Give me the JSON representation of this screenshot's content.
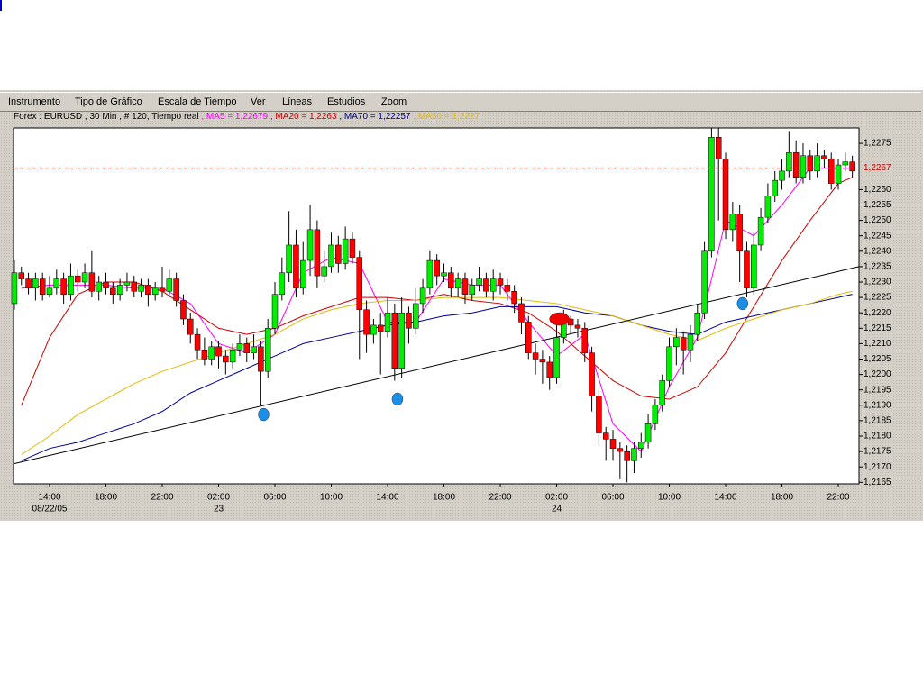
{
  "menu": [
    "Instrumento",
    "Tipo de Gráfico",
    "Escala de Tiempo",
    "Ver",
    "Líneas",
    "Estudios",
    "Zoom"
  ],
  "info": {
    "instrument": "Forex : EURUSD , 30 Min , # 120, Tiempo real",
    "indicators": [
      {
        "label": " , MA5 = 1,22679",
        "color": "#ff00ff"
      },
      {
        "label": " , MA20 = 1,2263",
        "color": "#cc0000"
      },
      {
        "label": " , MA70 = 1,22257",
        "color": "#000099"
      },
      {
        "label": " , MA50 = 1,2227",
        "color": "#e6b800"
      }
    ]
  },
  "chart_data": {
    "type": "candlestick",
    "up_color": "#00ee00",
    "down_color": "#ff0000",
    "xlim": [
      11.44,
      71.47
    ],
    "ylim": [
      1.21645,
      1.228
    ],
    "xticks": [
      {
        "value": 14,
        "label": "14:00"
      },
      {
        "value": 18,
        "label": "18:00"
      },
      {
        "value": 22,
        "label": "22:00"
      },
      {
        "value": 26,
        "label": "02:00"
      },
      {
        "value": 30,
        "label": "06:00"
      },
      {
        "value": 34,
        "label": "10:00"
      },
      {
        "value": 38,
        "label": "14:00"
      },
      {
        "value": 42,
        "label": "18:00"
      },
      {
        "value": 46,
        "label": "22:00"
      },
      {
        "value": 50,
        "label": "02:00"
      },
      {
        "value": 54,
        "label": "06:00"
      },
      {
        "value": 58,
        "label": "10:00"
      },
      {
        "value": 62,
        "label": "14:00"
      },
      {
        "value": 66,
        "label": "18:00"
      },
      {
        "value": 70,
        "label": "22:00"
      }
    ],
    "date_labels": [
      {
        "value": 14,
        "label": "08/22/05"
      },
      {
        "value": 26,
        "label": "23"
      },
      {
        "value": 50,
        "label": "24"
      }
    ],
    "yticks": [
      {
        "value": 1.2165,
        "label": "1,2165"
      },
      {
        "value": 1.217,
        "label": "1,2170"
      },
      {
        "value": 1.2175,
        "label": "1,2175"
      },
      {
        "value": 1.218,
        "label": "1,2180"
      },
      {
        "value": 1.2185,
        "label": "1,2185"
      },
      {
        "value": 1.219,
        "label": "1,2190"
      },
      {
        "value": 1.2195,
        "label": "1,2195"
      },
      {
        "value": 1.22,
        "label": "1,2200"
      },
      {
        "value": 1.2205,
        "label": "1,2205"
      },
      {
        "value": 1.221,
        "label": "1,2210"
      },
      {
        "value": 1.2215,
        "label": "1,2215"
      },
      {
        "value": 1.222,
        "label": "1,2220"
      },
      {
        "value": 1.2225,
        "label": "1,2225"
      },
      {
        "value": 1.223,
        "label": "1,2230"
      },
      {
        "value": 1.2235,
        "label": "1,2235"
      },
      {
        "value": 1.224,
        "label": "1,2240"
      },
      {
        "value": 1.2245,
        "label": "1,2245"
      },
      {
        "value": 1.225,
        "label": "1,2250"
      },
      {
        "value": 1.2255,
        "label": "1,2255"
      },
      {
        "value": 1.226,
        "label": "1,2260"
      },
      {
        "value": 1.2275,
        "label": "1,2275"
      }
    ],
    "last_price": {
      "value": 1.2267,
      "label": "1,2267",
      "color": "#cc0000"
    },
    "x": [
      11.5,
      12,
      12.5,
      13,
      13.5,
      14,
      14.5,
      15,
      15.5,
      16,
      16.5,
      17,
      17.5,
      18,
      18.5,
      19,
      19.5,
      20,
      20.5,
      21,
      21.5,
      22,
      22.5,
      23,
      23.5,
      24,
      24.5,
      25,
      25.5,
      26,
      26.5,
      27,
      27.5,
      28,
      28.5,
      29,
      29.5,
      30,
      30.5,
      31,
      31.5,
      32,
      32.5,
      33,
      33.5,
      34,
      34.5,
      35,
      35.5,
      36,
      36.5,
      37,
      37.5,
      38,
      38.5,
      39,
      39.5,
      40,
      40.5,
      41,
      41.5,
      42,
      42.5,
      43,
      43.5,
      44,
      44.5,
      45,
      45.5,
      46,
      46.5,
      47,
      47.5,
      48,
      48.5,
      49,
      49.5,
      50,
      50.5,
      51,
      51.5,
      52,
      52.5,
      53,
      53.5,
      54,
      54.5,
      55,
      55.5,
      56,
      56.5,
      57,
      57.5,
      58,
      58.5,
      59,
      59.5,
      60,
      60.5,
      61,
      61.5,
      62,
      62.5,
      63,
      63.5,
      64,
      64.5,
      65,
      65.5,
      66,
      66.5,
      67,
      67.5,
      68,
      68.5,
      69,
      69.5,
      70,
      70.5,
      71
    ],
    "ohlc": [
      [
        1.2223,
        1.2237,
        1.2221,
        1.2233
      ],
      [
        1.2233,
        1.2235,
        1.2229,
        1.2231
      ],
      [
        1.2231,
        1.2233,
        1.2226,
        1.2228
      ],
      [
        1.2228,
        1.2233,
        1.2224,
        1.2231
      ],
      [
        1.2231,
        1.2233,
        1.2224,
        1.2226
      ],
      [
        1.2226,
        1.2232,
        1.2225,
        1.2228
      ],
      [
        1.2228,
        1.2234,
        1.2226,
        1.2231
      ],
      [
        1.2231,
        1.2233,
        1.2223,
        1.2226
      ],
      [
        1.2226,
        1.2236,
        1.2224,
        1.2232
      ],
      [
        1.2232,
        1.2234,
        1.2227,
        1.223
      ],
      [
        1.223,
        1.2236,
        1.2228,
        1.2233
      ],
      [
        1.2233,
        1.224,
        1.2225,
        1.2227
      ],
      [
        1.2227,
        1.2232,
        1.2224,
        1.223
      ],
      [
        1.223,
        1.2233,
        1.2226,
        1.2228
      ],
      [
        1.2228,
        1.223,
        1.2223,
        1.2226
      ],
      [
        1.2226,
        1.2231,
        1.2224,
        1.2229
      ],
      [
        1.2229,
        1.2233,
        1.2227,
        1.223
      ],
      [
        1.223,
        1.2232,
        1.2225,
        1.2227
      ],
      [
        1.2227,
        1.2231,
        1.2225,
        1.2229
      ],
      [
        1.2229,
        1.2231,
        1.2222,
        1.2226
      ],
      [
        1.2226,
        1.223,
        1.2224,
        1.2228
      ],
      [
        1.2228,
        1.2235,
        1.2225,
        1.2227
      ],
      [
        1.2227,
        1.2234,
        1.2225,
        1.2231
      ],
      [
        1.2231,
        1.2233,
        1.2222,
        1.2224
      ],
      [
        1.2224,
        1.2226,
        1.2216,
        1.2218
      ],
      [
        1.2218,
        1.222,
        1.221,
        1.2213
      ],
      [
        1.2213,
        1.2215,
        1.2205,
        1.2208
      ],
      [
        1.2208,
        1.2212,
        1.2203,
        1.2205
      ],
      [
        1.2205,
        1.2211,
        1.2203,
        1.2209
      ],
      [
        1.2209,
        1.2211,
        1.2202,
        1.2206
      ],
      [
        1.2206,
        1.2208,
        1.22,
        1.2204
      ],
      [
        1.2204,
        1.221,
        1.2202,
        1.2208
      ],
      [
        1.2208,
        1.2213,
        1.2206,
        1.221
      ],
      [
        1.221,
        1.2212,
        1.2204,
        1.2207
      ],
      [
        1.2207,
        1.2213,
        1.2205,
        1.2209
      ],
      [
        1.2209,
        1.2211,
        1.219,
        1.2201
      ],
      [
        1.2201,
        1.2218,
        1.2199,
        1.2215
      ],
      [
        1.2215,
        1.223,
        1.2213,
        1.2226
      ],
      [
        1.2226,
        1.2238,
        1.2224,
        1.2233
      ],
      [
        1.2233,
        1.2253,
        1.223,
        1.2242
      ],
      [
        1.2242,
        1.2247,
        1.2225,
        1.2228
      ],
      [
        1.2228,
        1.2243,
        1.2226,
        1.2237
      ],
      [
        1.2237,
        1.2255,
        1.2232,
        1.2247
      ],
      [
        1.2247,
        1.225,
        1.2228,
        1.2232
      ],
      [
        1.2232,
        1.224,
        1.223,
        1.2235
      ],
      [
        1.2235,
        1.2246,
        1.2233,
        1.2242
      ],
      [
        1.2242,
        1.2245,
        1.2233,
        1.2236
      ],
      [
        1.2236,
        1.2248,
        1.2234,
        1.2244
      ],
      [
        1.2244,
        1.2246,
        1.2236,
        1.2238
      ],
      [
        1.2238,
        1.224,
        1.2205,
        1.2221
      ],
      [
        1.2221,
        1.2224,
        1.2207,
        1.2213
      ],
      [
        1.2213,
        1.2218,
        1.221,
        1.2216
      ],
      [
        1.2216,
        1.222,
        1.22,
        1.2214
      ],
      [
        1.2214,
        1.2225,
        1.2212,
        1.222
      ],
      [
        1.222,
        1.2223,
        1.2198,
        1.2202
      ],
      [
        1.2202,
        1.2225,
        1.2199,
        1.222
      ],
      [
        1.222,
        1.2222,
        1.221,
        1.2215
      ],
      [
        1.2215,
        1.2228,
        1.2213,
        1.2223
      ],
      [
        1.2223,
        1.2231,
        1.222,
        1.2228
      ],
      [
        1.2228,
        1.224,
        1.2226,
        1.2237
      ],
      [
        1.2237,
        1.2239,
        1.2229,
        1.2232
      ],
      [
        1.2232,
        1.2236,
        1.223,
        1.2233
      ],
      [
        1.2233,
        1.2235,
        1.2225,
        1.2228
      ],
      [
        1.2228,
        1.2233,
        1.2225,
        1.2231
      ],
      [
        1.2231,
        1.2233,
        1.2223,
        1.2226
      ],
      [
        1.2226,
        1.2231,
        1.2224,
        1.2229
      ],
      [
        1.2229,
        1.2235,
        1.2227,
        1.2231
      ],
      [
        1.2231,
        1.2233,
        1.2225,
        1.2227
      ],
      [
        1.2227,
        1.2234,
        1.2224,
        1.2231
      ],
      [
        1.2231,
        1.2233,
        1.2226,
        1.2229
      ],
      [
        1.2229,
        1.2231,
        1.2224,
        1.2227
      ],
      [
        1.2227,
        1.2229,
        1.222,
        1.2223
      ],
      [
        1.2223,
        1.2225,
        1.2213,
        1.2217
      ],
      [
        1.2217,
        1.2219,
        1.2205,
        1.2207
      ],
      [
        1.2207,
        1.221,
        1.22,
        1.2205
      ],
      [
        1.2205,
        1.2208,
        1.2197,
        1.2204
      ],
      [
        1.2204,
        1.2206,
        1.2195,
        1.2199
      ],
      [
        1.2199,
        1.2216,
        1.2197,
        1.2212
      ],
      [
        1.2212,
        1.2221,
        1.221,
        1.2218
      ],
      [
        1.2218,
        1.2219,
        1.2213,
        1.2216
      ],
      [
        1.2216,
        1.2218,
        1.2212,
        1.2215
      ],
      [
        1.2215,
        1.2217,
        1.2204,
        1.2207
      ],
      [
        1.2207,
        1.2209,
        1.2188,
        1.2193
      ],
      [
        1.2193,
        1.2195,
        1.2177,
        1.2181
      ],
      [
        1.2181,
        1.2183,
        1.2172,
        1.2179
      ],
      [
        1.2179,
        1.2182,
        1.2172,
        1.2176
      ],
      [
        1.2176,
        1.2178,
        1.2166,
        1.2175
      ],
      [
        1.2175,
        1.2177,
        1.2165,
        1.2172
      ],
      [
        1.2172,
        1.2178,
        1.2168,
        1.2176
      ],
      [
        1.2176,
        1.2181,
        1.2173,
        1.2178
      ],
      [
        1.2178,
        1.2187,
        1.2176,
        1.2184
      ],
      [
        1.2184,
        1.2192,
        1.2182,
        1.219
      ],
      [
        1.219,
        1.22,
        1.2188,
        1.2198
      ],
      [
        1.2198,
        1.2212,
        1.2196,
        1.2209
      ],
      [
        1.2209,
        1.2215,
        1.2203,
        1.2212
      ],
      [
        1.2212,
        1.2214,
        1.22,
        1.2208
      ],
      [
        1.2208,
        1.2216,
        1.2204,
        1.2213
      ],
      [
        1.2213,
        1.2223,
        1.2211,
        1.222
      ],
      [
        1.222,
        1.2243,
        1.2218,
        1.224
      ],
      [
        1.224,
        1.228,
        1.2238,
        1.2277
      ],
      [
        1.2277,
        1.228,
        1.225,
        1.227
      ],
      [
        1.227,
        1.2272,
        1.2244,
        1.2247
      ],
      [
        1.2247,
        1.2256,
        1.2243,
        1.2252
      ],
      [
        1.2252,
        1.2255,
        1.223,
        1.224
      ],
      [
        1.224,
        1.2243,
        1.2225,
        1.2228
      ],
      [
        1.2228,
        1.2246,
        1.2226,
        1.2242
      ],
      [
        1.2242,
        1.2254,
        1.224,
        1.2251
      ],
      [
        1.2251,
        1.2262,
        1.2249,
        1.2258
      ],
      [
        1.2258,
        1.2266,
        1.2256,
        1.2263
      ],
      [
        1.2263,
        1.227,
        1.226,
        1.2266
      ],
      [
        1.2266,
        1.2279,
        1.2264,
        1.2272
      ],
      [
        1.2272,
        1.2276,
        1.2262,
        1.2264
      ],
      [
        1.2264,
        1.2275,
        1.2262,
        1.2271
      ],
      [
        1.2271,
        1.2273,
        1.2263,
        1.2266
      ],
      [
        1.2266,
        1.2275,
        1.2264,
        1.2271
      ],
      [
        1.2271,
        1.2273,
        1.2267,
        1.227
      ],
      [
        1.227,
        1.2272,
        1.226,
        1.2262
      ],
      [
        1.2262,
        1.227,
        1.226,
        1.2268
      ],
      [
        1.2268,
        1.2272,
        1.2266,
        1.2269
      ],
      [
        1.2269,
        1.2271,
        1.2264,
        1.2266
      ]
    ],
    "line_x": [
      12,
      14,
      16,
      18,
      20,
      22,
      24,
      26,
      28,
      30,
      32,
      34,
      36,
      38,
      40,
      42,
      44,
      46,
      48,
      50,
      52,
      54,
      56,
      58,
      60,
      62,
      64,
      66,
      68,
      70,
      71
    ],
    "lines": [
      {
        "color": "#ff00ff",
        "values": [
          1.2228,
          1.2229,
          1.2229,
          1.2229,
          1.2228,
          1.2228,
          1.2223,
          1.221,
          1.2207,
          1.2213,
          1.2233,
          1.2238,
          1.2236,
          1.2217,
          1.2217,
          1.2231,
          1.2229,
          1.2229,
          1.2217,
          1.2206,
          1.2213,
          1.2184,
          1.2175,
          1.2196,
          1.2212,
          1.225,
          1.2245,
          1.2255,
          1.2267,
          1.2267,
          1.2267
        ]
      },
      {
        "color": "#cc0000",
        "values": [
          1.219,
          1.2212,
          1.2226,
          1.223,
          1.223,
          1.2227,
          1.2221,
          1.2215,
          1.2213,
          1.2215,
          1.2219,
          1.2222,
          1.2225,
          1.2225,
          1.2224,
          1.2226,
          1.2224,
          1.2223,
          1.222,
          1.2214,
          1.2206,
          1.2198,
          1.2193,
          1.2192,
          1.2196,
          1.2207,
          1.2222,
          1.2237,
          1.225,
          1.2262,
          1.2264
        ]
      },
      {
        "color": "#000099",
        "values": [
          1.2172,
          1.2176,
          1.2178,
          1.2181,
          1.2184,
          1.2188,
          1.2194,
          1.2198,
          1.2202,
          1.2206,
          1.221,
          1.2212,
          1.2214,
          1.2216,
          1.2217,
          1.2219,
          1.222,
          1.2222,
          1.2222,
          1.2222,
          1.222,
          1.2219,
          1.2216,
          1.2214,
          1.2213,
          1.2217,
          1.2219,
          1.2221,
          1.2223,
          1.2225,
          1.2226
        ]
      },
      {
        "color": "#e6b800",
        "values": [
          1.2174,
          1.218,
          1.2187,
          1.2192,
          1.2197,
          1.2201,
          1.2204,
          1.2207,
          1.221,
          1.2213,
          1.2218,
          1.2221,
          1.2223,
          1.2224,
          1.2224,
          1.2225,
          1.2225,
          1.2225,
          1.2224,
          1.2223,
          1.2221,
          1.2219,
          1.2216,
          1.2213,
          1.2211,
          1.2215,
          1.2218,
          1.2221,
          1.2223,
          1.2226,
          1.2227
        ]
      }
    ],
    "trendline": {
      "x": [
        11.44,
        71.47
      ],
      "values": [
        1.2171,
        1.2235
      ],
      "color": "#000000"
    },
    "markers": [
      {
        "x": 29.2,
        "value": 1.2187,
        "color": "#1a8fe8"
      },
      {
        "x": 38.7,
        "value": 1.2192,
        "color": "#1a8fe8"
      },
      {
        "x": 50.2,
        "value": 1.2218,
        "color": "#ee0000"
      },
      {
        "x": 63.2,
        "value": 1.2223,
        "color": "#1a8fe8"
      }
    ]
  }
}
